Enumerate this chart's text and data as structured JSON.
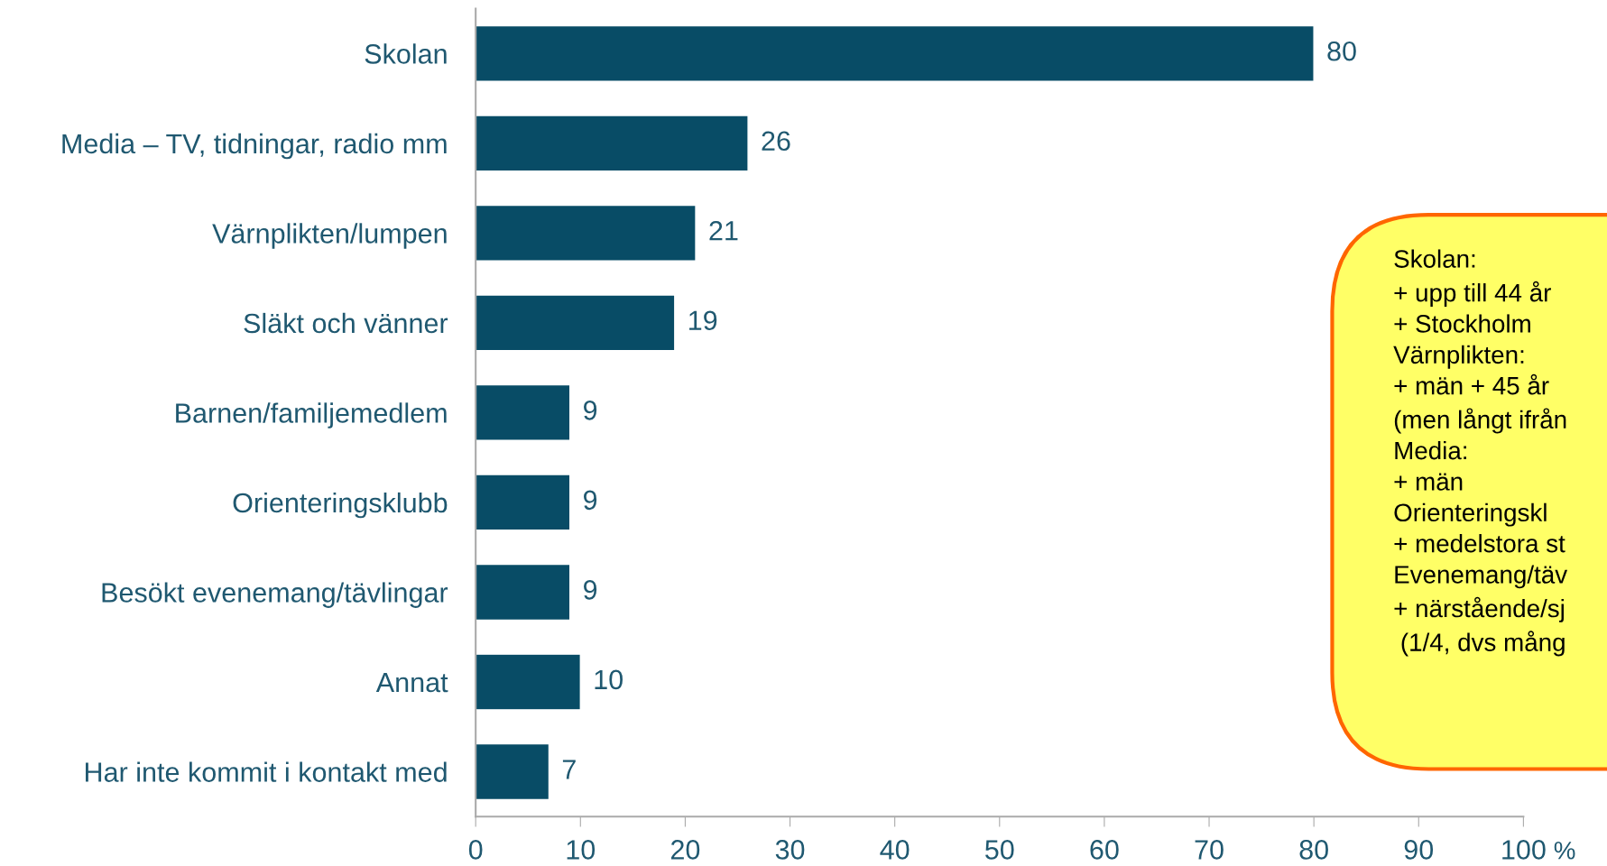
{
  "chart_data": {
    "type": "bar",
    "orientation": "horizontal",
    "categories": [
      "Skolan",
      "Media – TV, tidningar, radio mm",
      "Värnplikten/lumpen",
      "Släkt och vänner",
      "Barnen/familjemedlem",
      "Orienteringsklubb",
      "Besökt evenemang/tävlingar",
      "Annat",
      "Har inte kommit i kontakt med"
    ],
    "values": [
      80,
      26,
      21,
      19,
      9,
      9,
      9,
      10,
      7
    ],
    "color": "#084c66",
    "data_labels": true,
    "xlabel": "%",
    "xlim": [
      0,
      100
    ],
    "xticks": [
      0,
      10,
      20,
      30,
      40,
      50,
      60,
      70,
      80,
      90,
      100
    ],
    "grid": false,
    "annotations": [
      "Skolan:\n+ upp till 44 år\n+ Stockholm\nVärnplikten:\n+ män + 45 år\n(men långt ifrån\nMedia:\n+ män\nOrienteringskl\n+ medelstora st\nEvenemang/täv\n+ närstående/sj\n (1/4, dvs mång"
    ]
  }
}
